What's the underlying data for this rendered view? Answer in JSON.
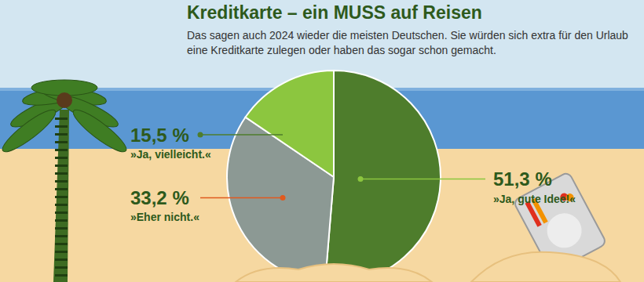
{
  "chart_data": {
    "type": "pie",
    "title": "Kreditkarte – ein MUSS auf Reisen",
    "subtitle": "Das sagen auch 2024 wieder die meisten Deutschen. Sie würden sich extra für den Urlaub eine Kreditkarte zulegen oder haben das sogar schon gemacht.",
    "categories": [
      "»Ja, gute Idee!«",
      "»Eher nicht.«",
      "»Ja, vielleicht.«"
    ],
    "values": [
      51.3,
      33.2,
      15.5
    ],
    "value_labels": [
      "51,3 %",
      "33,2 %",
      "15,5 %"
    ],
    "colors": [
      "#4e7d2c",
      "#8c9994",
      "#8cc63f"
    ],
    "data_labels": true
  }
}
